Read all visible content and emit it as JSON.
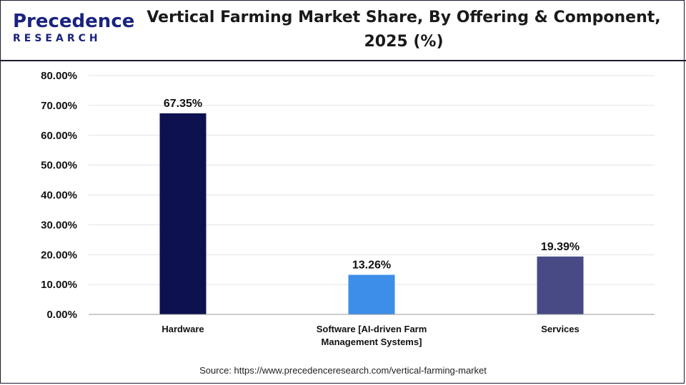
{
  "header": {
    "logo_main": "Precedence",
    "logo_sub": "RESEARCH",
    "title_line1": "Vertical Farming Market Share, By Offering & Component,",
    "title_line2": "2025 (%)"
  },
  "source": "Source: https://www.precedenceresearch.com/vertical-farming-market",
  "chart_data": {
    "type": "bar",
    "title": "Vertical Farming Market Share, By Offering & Component, 2025 (%)",
    "categories": [
      "Hardware",
      "Software [AI-driven Farm Management Systems]",
      "Services"
    ],
    "category_lines": [
      [
        "Hardware"
      ],
      [
        "Software [AI-driven Farm",
        "Management Systems]"
      ],
      [
        "Services"
      ]
    ],
    "values": [
      67.35,
      13.26,
      19.39
    ],
    "value_labels": [
      "67.35%",
      "13.26%",
      "19.39%"
    ],
    "colors": [
      "#0d1150",
      "#3d8ee8",
      "#474a85"
    ],
    "ylim": [
      0,
      80
    ],
    "yticks": [
      0,
      10,
      20,
      30,
      40,
      50,
      60,
      70,
      80
    ],
    "ytick_labels": [
      "0.00%",
      "10.00%",
      "20.00%",
      "30.00%",
      "40.00%",
      "50.00%",
      "60.00%",
      "70.00%",
      "80.00%"
    ],
    "grid": true,
    "legend": "none"
  }
}
